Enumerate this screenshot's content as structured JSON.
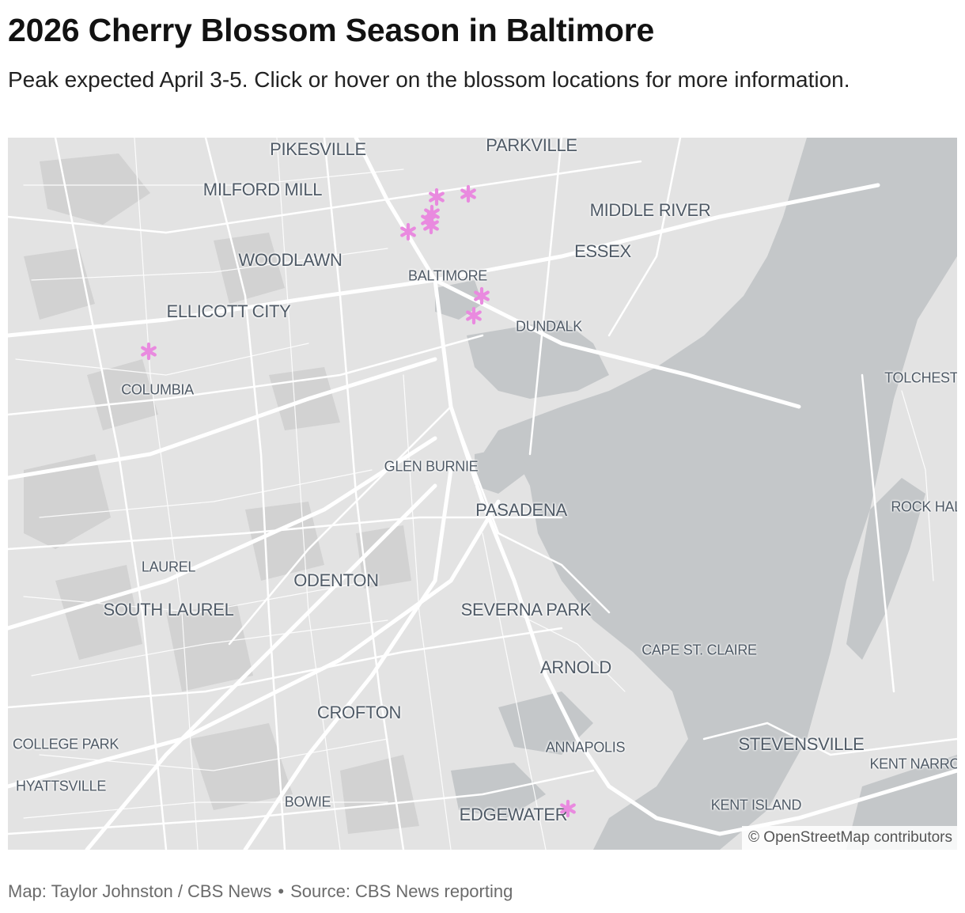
{
  "title": "2026 Cherry Blossom Season in Baltimore",
  "subtitle": "Peak expected April 3-5. Click or hover on the blossom locations for more information.",
  "map": {
    "attribution": "© OpenStreetMap contributors",
    "marker_color": "#e98adf",
    "water_color": "#c4c7c9",
    "land_color": "#e3e3e3",
    "road_color": "#ffffff",
    "places": [
      {
        "name": "PIKESVILLE",
        "size": "lg"
      },
      {
        "name": "PARKVILLE",
        "size": "lg"
      },
      {
        "name": "MILFORD MILL",
        "size": "lg"
      },
      {
        "name": "MIDDLE RIVER",
        "size": "lg"
      },
      {
        "name": "WOODLAWN",
        "size": "lg"
      },
      {
        "name": "ESSEX",
        "size": "lg"
      },
      {
        "name": "BALTIMORE",
        "size": "sm"
      },
      {
        "name": "ELLICOTT CITY",
        "size": "lg"
      },
      {
        "name": "DUNDALK",
        "size": "sm"
      },
      {
        "name": "COLUMBIA",
        "size": "sm"
      },
      {
        "name": "TOLCHESTER",
        "size": "sm"
      },
      {
        "name": "GLEN BURNIE",
        "size": "sm"
      },
      {
        "name": "PASADENA",
        "size": "lg"
      },
      {
        "name": "ROCK HALL",
        "size": "sm"
      },
      {
        "name": "LAUREL",
        "size": "sm"
      },
      {
        "name": "ODENTON",
        "size": "lg"
      },
      {
        "name": "SOUTH LAUREL",
        "size": "lg"
      },
      {
        "name": "SEVERNA PARK",
        "size": "lg"
      },
      {
        "name": "CAPE ST. CLAIRE",
        "size": "sm"
      },
      {
        "name": "ARNOLD",
        "size": "lg"
      },
      {
        "name": "CROFTON",
        "size": "lg"
      },
      {
        "name": "COLLEGE PARK",
        "size": "sm"
      },
      {
        "name": "ANNAPOLIS",
        "size": "sm"
      },
      {
        "name": "STEVENSVILLE",
        "size": "lg"
      },
      {
        "name": "KENT NARROWS",
        "size": "sm"
      },
      {
        "name": "HYATTSVILLE",
        "size": "sm"
      },
      {
        "name": "BOWIE",
        "size": "sm"
      },
      {
        "name": "KENT ISLAND",
        "size": "sm"
      },
      {
        "name": "EDGEWATER",
        "size": "lg"
      }
    ],
    "blossom_locations": [
      {
        "id": 1,
        "icon": "blossom-asterisk-icon"
      },
      {
        "id": 2,
        "icon": "blossom-asterisk-icon"
      },
      {
        "id": 3,
        "icon": "blossom-asterisk-icon"
      },
      {
        "id": 4,
        "icon": "blossom-asterisk-icon"
      },
      {
        "id": 5,
        "icon": "blossom-asterisk-icon"
      },
      {
        "id": 6,
        "icon": "blossom-asterisk-icon"
      },
      {
        "id": 7,
        "icon": "blossom-asterisk-icon"
      },
      {
        "id": 8,
        "icon": "blossom-asterisk-icon"
      },
      {
        "id": 9,
        "icon": "blossom-asterisk-icon"
      },
      {
        "id": 10,
        "icon": "blossom-asterisk-icon"
      }
    ]
  },
  "footer": {
    "credit": "Map: Taylor Johnston / CBS News",
    "separator": "•",
    "source": "Source: CBS News reporting"
  }
}
